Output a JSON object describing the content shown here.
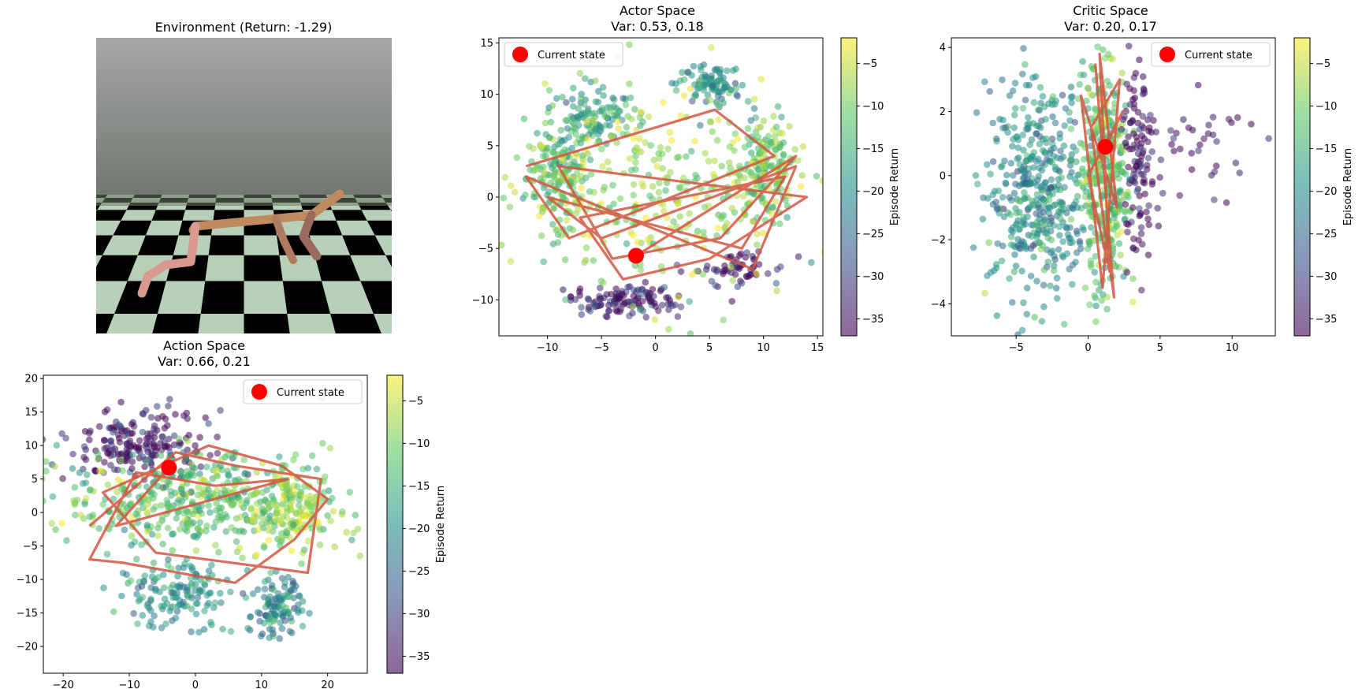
{
  "figure": {
    "env_title": "Environment (Return: -1.29)"
  },
  "colors": {
    "current_state": "#ff0000",
    "trajectory": "#d2553f",
    "colormap": [
      "#440154",
      "#3b528b",
      "#21918c",
      "#5ec962",
      "#fde725"
    ]
  },
  "environment": {
    "scene": "walker-on-checkerboard",
    "sky_top": "#a0a0a0",
    "sky_bottom": "#6e7a6a",
    "tile_light": "#b8d0b8",
    "tile_dark": "#000000",
    "body_color": "#c08a60"
  },
  "chart_data": [
    {
      "id": "actor",
      "type": "scatter",
      "title": "Actor Space",
      "subtitle": "Var: 0.53, 0.18",
      "xlim": [
        -14.5,
        15.5
      ],
      "ylim": [
        -13.5,
        15.5
      ],
      "xticks": [
        -10,
        -5,
        0,
        5,
        10,
        15
      ],
      "yticks": [
        -10,
        -5,
        0,
        5,
        10,
        15
      ],
      "legend": {
        "label": "Current state",
        "placement": "upper-left"
      },
      "colorbar": {
        "label": "Episode Return",
        "range": [
          -37,
          -2
        ],
        "ticks": [
          -5,
          -10,
          -15,
          -20,
          -25,
          -30,
          -35
        ]
      },
      "current_state": [
        -1.8,
        -5.7
      ],
      "clusters": [
        {
          "cx": -9,
          "cy": 2,
          "rx": 3,
          "ry": 5,
          "ret": -12,
          "n": 160
        },
        {
          "cx": 10,
          "cy": 3,
          "rx": 3,
          "ry": 5,
          "ret": -11,
          "n": 170
        },
        {
          "cx": 5,
          "cy": 11,
          "rx": 3,
          "ry": 2,
          "ret": -20,
          "n": 90
        },
        {
          "cx": -6,
          "cy": 8,
          "rx": 4,
          "ry": 3,
          "ret": -18,
          "n": 110
        },
        {
          "cx": -3,
          "cy": -10,
          "rx": 5,
          "ry": 1.5,
          "ret": -34,
          "n": 120
        },
        {
          "cx": 8,
          "cy": -7,
          "rx": 4,
          "ry": 2,
          "ret": -35,
          "n": 60
        },
        {
          "cx": 0,
          "cy": 0,
          "rx": 12,
          "ry": 10,
          "ret": -8,
          "n": 300
        }
      ],
      "trajectory": [
        [
          -12,
          3
        ],
        [
          5.5,
          8.5
        ],
        [
          11,
          4
        ],
        [
          -8,
          -4
        ],
        [
          -12,
          2
        ],
        [
          9,
          -7
        ],
        [
          13,
          3
        ],
        [
          -5,
          -4
        ],
        [
          -10,
          0
        ],
        [
          8,
          -5
        ],
        [
          12,
          2
        ],
        [
          -7,
          -2
        ],
        [
          -3,
          -8
        ],
        [
          5,
          -6
        ],
        [
          14,
          0
        ],
        [
          -9,
          3
        ],
        [
          -4,
          -6
        ],
        [
          6,
          -4
        ],
        [
          13,
          4
        ],
        [
          -1.8,
          -5.7
        ]
      ]
    },
    {
      "id": "critic",
      "type": "scatter",
      "title": "Critic Space",
      "subtitle": "Var: 0.20, 0.17",
      "xlim": [
        -9.5,
        13
      ],
      "ylim": [
        -5,
        4.3
      ],
      "xticks": [
        -5,
        0,
        5,
        10
      ],
      "yticks": [
        -4,
        -2,
        0,
        2,
        4
      ],
      "legend": {
        "label": "Current state",
        "placement": "upper-right"
      },
      "colorbar": {
        "label": "Episode Return",
        "range": [
          -37,
          -2
        ],
        "ticks": [
          -5,
          -10,
          -15,
          -20,
          -25,
          -30,
          -35
        ]
      },
      "current_state": [
        1.2,
        0.9
      ],
      "clusters": [
        {
          "cx": -3.5,
          "cy": -0.5,
          "rx": 3.5,
          "ry": 3.2,
          "ret": -20,
          "n": 420
        },
        {
          "cx": 1.2,
          "cy": 0,
          "rx": 1.6,
          "ry": 3.8,
          "ret": -12,
          "n": 380
        },
        {
          "cx": 3.5,
          "cy": 0.5,
          "rx": 1.2,
          "ry": 3,
          "ret": -36,
          "n": 120
        },
        {
          "cx": 8,
          "cy": 0.8,
          "rx": 4,
          "ry": 1.8,
          "ret": -36,
          "n": 35
        }
      ],
      "trajectory": [
        [
          0.5,
          3.5
        ],
        [
          1.8,
          -3.8
        ],
        [
          0.2,
          1.5
        ],
        [
          2.2,
          3
        ],
        [
          1,
          -3.5
        ],
        [
          -0.5,
          2.5
        ],
        [
          2,
          -1
        ],
        [
          0.8,
          3.8
        ],
        [
          1.5,
          -3
        ],
        [
          0,
          0
        ],
        [
          2.4,
          2
        ],
        [
          1.2,
          0.9
        ]
      ]
    },
    {
      "id": "action",
      "type": "scatter",
      "title": "Action Space",
      "subtitle": "Var: 0.66, 0.21",
      "xlim": [
        -23,
        26
      ],
      "ylim": [
        -24,
        20.5
      ],
      "xticks": [
        -20,
        -10,
        0,
        10,
        20
      ],
      "yticks": [
        -20,
        -15,
        -10,
        -5,
        0,
        5,
        10,
        15,
        20
      ],
      "legend": {
        "label": "Current state",
        "placement": "upper-right"
      },
      "colorbar": {
        "label": "Episode Return",
        "range": [
          -37,
          -2
        ],
        "ticks": [
          -5,
          -10,
          -15,
          -20,
          -25,
          -30,
          -35
        ]
      },
      "current_state": [
        -4,
        6.7
      ],
      "clusters": [
        {
          "cx": -8,
          "cy": 10,
          "rx": 10,
          "ry": 5,
          "ret": -35,
          "n": 200
        },
        {
          "cx": 0,
          "cy": 2,
          "rx": 20,
          "ry": 7,
          "ret": -12,
          "n": 450
        },
        {
          "cx": -3,
          "cy": -12,
          "rx": 9,
          "ry": 5,
          "ret": -20,
          "n": 140
        },
        {
          "cx": 12,
          "cy": -14,
          "rx": 4,
          "ry": 5,
          "ret": -21,
          "n": 110
        },
        {
          "cx": 15,
          "cy": 0,
          "rx": 7,
          "ry": 6,
          "ret": -7,
          "n": 140
        }
      ],
      "trajectory": [
        [
          -16,
          -2
        ],
        [
          -3,
          9
        ],
        [
          6,
          7
        ],
        [
          19,
          5
        ],
        [
          17,
          -9
        ],
        [
          -6,
          -6
        ],
        [
          -14,
          3
        ],
        [
          2,
          10
        ],
        [
          13,
          7
        ],
        [
          20,
          2
        ],
        [
          15,
          -4
        ],
        [
          6,
          -10.5
        ],
        [
          -11,
          -7.5
        ],
        [
          -16,
          -7
        ],
        [
          -9,
          6
        ],
        [
          3,
          4
        ],
        [
          14,
          5
        ],
        [
          -12,
          -2
        ],
        [
          -4,
          6.7
        ]
      ]
    }
  ]
}
